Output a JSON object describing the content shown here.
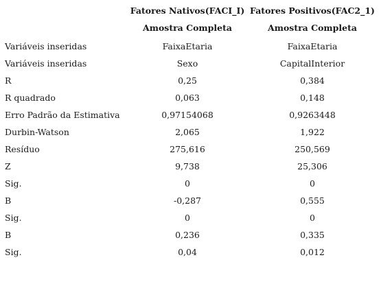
{
  "table": {
    "headers": {
      "row1": [
        "Fatores Nativos(FACI_I)",
        "Fatores Positivos(FAC2_1)"
      ],
      "row2": [
        "Amostra Completa",
        "Amostra Completa"
      ]
    },
    "rows": [
      {
        "label": "Variáveis inseridas",
        "v1": "FaixaEtaria",
        "v2": "FaixaEtaria"
      },
      {
        "label": "Variáveis inseridas",
        "v1": "Sexo",
        "v2": "CapitalInterior"
      },
      {
        "label": "R",
        "v1": "0,25",
        "v2": "0,384"
      },
      {
        "label": "R quadrado",
        "v1": "0,063",
        "v2": "0,148"
      },
      {
        "label": "Erro Padrão da Estimativa",
        "v1": "0,97154068",
        "v2": "0,9263448"
      },
      {
        "label": "Durbin-Watson",
        "v1": "2,065",
        "v2": "1,922"
      },
      {
        "label": "Resíduo",
        "v1": "275,616",
        "v2": "250,569"
      },
      {
        "label": "Z",
        "v1": "9,738",
        "v2": "25,306"
      },
      {
        "label": "Sig.",
        "v1": "0",
        "v2": "0"
      },
      {
        "label": "B",
        "v1": "-0,287",
        "v2": "0,555"
      },
      {
        "label": "Sig.",
        "v1": "0",
        "v2": "0"
      },
      {
        "label": "B",
        "v1": "0,236",
        "v2": "0,335"
      },
      {
        "label": "Sig.",
        "v1": "0,04",
        "v2": "0,012"
      }
    ]
  }
}
